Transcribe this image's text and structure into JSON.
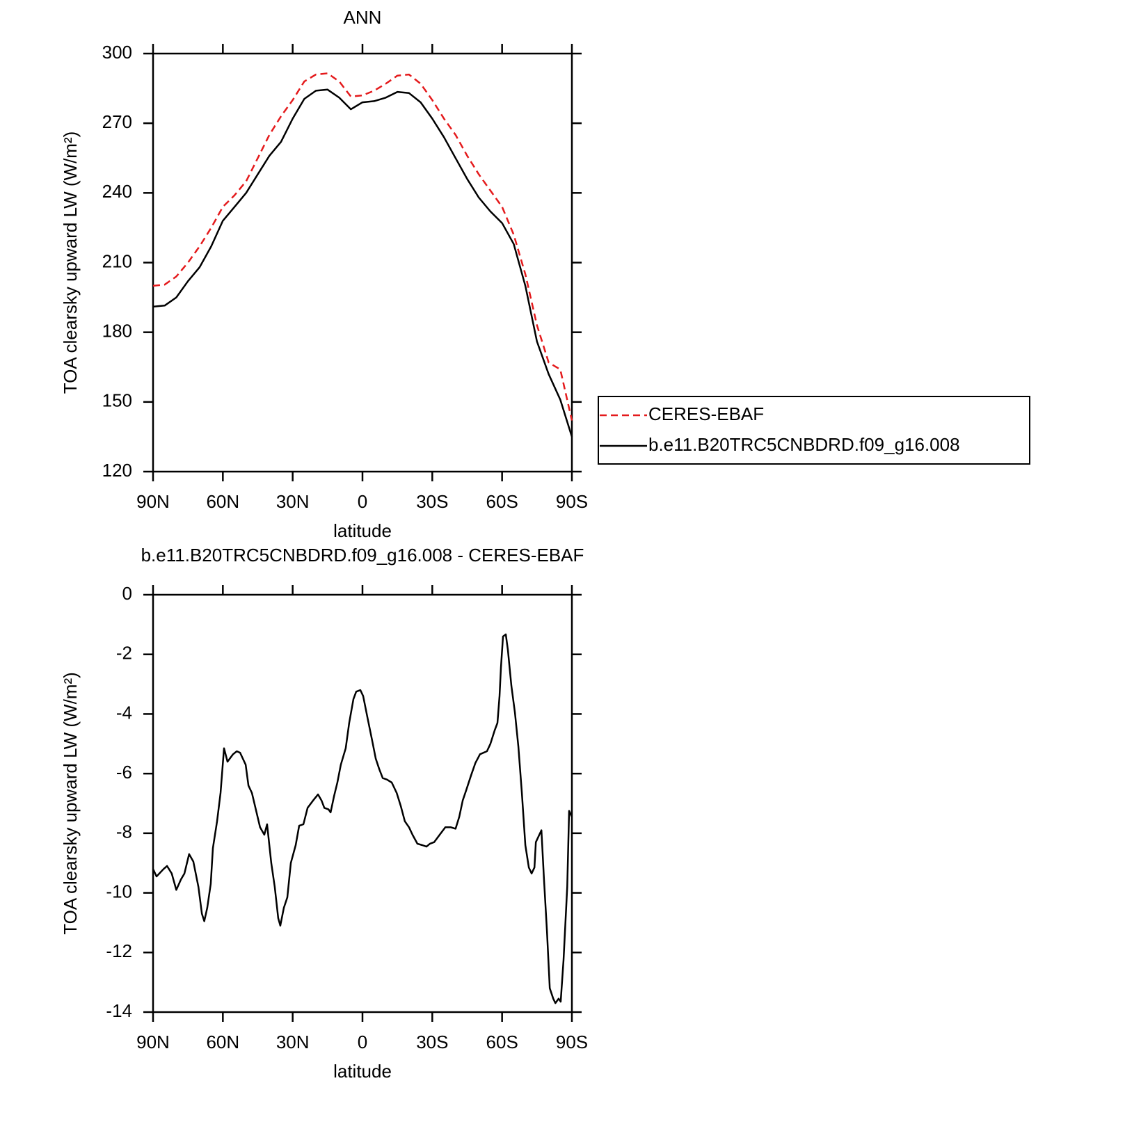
{
  "chart_data": [
    {
      "type": "line",
      "title": "ANN",
      "xlabel": "latitude",
      "ylabel": "TOA clearsky upward LW (W/m²)",
      "xlim": [
        90,
        -90
      ],
      "ylim": [
        120,
        300
      ],
      "xticks": [
        {
          "value": 90,
          "label": "90N"
        },
        {
          "value": 60,
          "label": "60N"
        },
        {
          "value": 30,
          "label": "30N"
        },
        0,
        {
          "value": -30,
          "label": "30S"
        },
        {
          "value": -60,
          "label": "60S"
        },
        {
          "value": -90,
          "label": "90S"
        }
      ],
      "yticks": [
        120,
        150,
        180,
        210,
        240,
        270,
        300
      ],
      "legend": "right",
      "x": [
        90,
        85,
        80,
        75,
        70,
        65,
        60,
        55,
        50,
        45,
        40,
        35,
        30,
        25,
        20,
        15,
        10,
        5,
        0,
        -5,
        -10,
        -15,
        -20,
        -25,
        -30,
        -35,
        -40,
        -45,
        -50,
        -55,
        -60,
        -65,
        -70,
        -75,
        -80,
        -85,
        -90
      ],
      "series": [
        {
          "name": "CERES-EBAF",
          "color": "#e41a1c",
          "line_style": "dashed",
          "values": [
            200,
            200.5,
            204,
            210,
            217,
            225,
            234,
            239,
            245,
            255,
            265,
            273,
            280,
            288,
            291,
            291.5,
            288,
            281.5,
            282,
            284,
            287,
            290.5,
            291,
            287,
            280,
            272,
            265,
            256,
            248,
            241,
            234,
            222,
            205,
            183,
            167,
            164,
            142
          ]
        },
        {
          "name": "b.e11.B20TRC5CNBDRD.f09_g16.008",
          "color": "#000000",
          "line_style": "solid",
          "values": [
            191,
            191.5,
            195,
            202,
            208,
            217,
            228,
            234,
            240,
            248,
            256,
            262,
            272,
            280.5,
            284,
            284.5,
            281,
            276,
            279,
            279.5,
            281,
            283.5,
            283,
            279,
            272,
            264,
            255,
            246,
            238,
            232,
            227,
            218,
            200,
            176,
            162,
            151,
            135
          ]
        }
      ]
    },
    {
      "type": "line",
      "title": "b.e11.B20TRC5CNBDRD.f09_g16.008 - CERES-EBAF",
      "xlabel": "latitude",
      "ylabel": "TOA clearsky upward LW (W/m²)",
      "xlim": [
        90,
        -90
      ],
      "ylim": [
        -14,
        0
      ],
      "xticks": [
        {
          "value": 90,
          "label": "90N"
        },
        {
          "value": 60,
          "label": "60N"
        },
        {
          "value": 30,
          "label": "30N"
        },
        0,
        {
          "value": -30,
          "label": "30S"
        },
        {
          "value": -60,
          "label": "60S"
        },
        {
          "value": -90,
          "label": "90S"
        }
      ],
      "yticks": [
        -14,
        -12,
        -10,
        -8,
        -6,
        -4,
        -2,
        0
      ],
      "x": [
        90,
        88.5,
        85.5,
        84,
        82,
        80,
        78,
        76.5,
        74.5,
        72.7,
        70.5,
        69,
        68,
        66.7,
        65.2,
        64.3,
        62.5,
        61,
        59.5,
        58,
        55.6,
        54,
        52.6,
        50.2,
        49,
        47.5,
        45.7,
        44,
        42.2,
        41,
        39.2,
        37.7,
        36.2,
        35.3,
        33.8,
        32.3,
        30.8,
        28.7,
        27.2,
        25.4,
        23.6,
        21.2,
        19.1,
        17.6,
        16.4,
        14.6,
        13.7,
        12.2,
        10.8,
        9.3,
        7.2,
        5.7,
        3.9,
        2.7,
        0.9,
        -0.3,
        -2.1,
        -4.2,
        -5.7,
        -7.2,
        -8.7,
        -10.5,
        -12.6,
        -14.7,
        -16.5,
        -18.2,
        -20,
        -21.5,
        -23.6,
        -25.7,
        -27.5,
        -29,
        -30.8,
        -33.2,
        -35.6,
        -38,
        -40,
        -41.6,
        -43.1,
        -44.6,
        -46.7,
        -48.5,
        -50.5,
        -53.5,
        -55,
        -56.8,
        -58,
        -58.9,
        -59.5,
        -60.4,
        -61.6,
        -62.5,
        -64,
        -65.5,
        -67,
        -68.5,
        -70,
        -71.5,
        -72.7,
        -73.9,
        -74.5,
        -76,
        -76.9,
        -78,
        -79.3,
        -80.5,
        -82,
        -82.9,
        -84.3,
        -85.2,
        -86.4,
        -88,
        -88.8,
        -90
      ],
      "series": [
        {
          "color": "#000000",
          "line_style": "solid",
          "values": [
            -9.2,
            -9.45,
            -9.2,
            -9.1,
            -9.35,
            -9.9,
            -9.55,
            -9.35,
            -8.7,
            -8.95,
            -9.8,
            -10.7,
            -10.95,
            -10.5,
            -9.7,
            -8.5,
            -7.6,
            -6.65,
            -5.15,
            -5.6,
            -5.35,
            -5.25,
            -5.3,
            -5.7,
            -6.4,
            -6.65,
            -7.25,
            -7.8,
            -8.05,
            -7.7,
            -9.0,
            -9.8,
            -10.85,
            -11.1,
            -10.5,
            -10.15,
            -9.0,
            -8.4,
            -7.75,
            -7.7,
            -7.15,
            -6.9,
            -6.7,
            -6.9,
            -7.15,
            -7.2,
            -7.3,
            -6.75,
            -6.3,
            -5.7,
            -5.15,
            -4.3,
            -3.5,
            -3.25,
            -3.2,
            -3.4,
            -4.1,
            -4.9,
            -5.5,
            -5.85,
            -6.15,
            -6.2,
            -6.3,
            -6.65,
            -7.1,
            -7.6,
            -7.8,
            -8.05,
            -8.35,
            -8.4,
            -8.45,
            -8.35,
            -8.3,
            -8.05,
            -7.8,
            -7.8,
            -7.85,
            -7.45,
            -6.9,
            -6.55,
            -6.05,
            -5.65,
            -5.35,
            -5.25,
            -5.0,
            -4.55,
            -4.3,
            -3.4,
            -2.45,
            -1.4,
            -1.33,
            -1.85,
            -3.05,
            -3.95,
            -5.1,
            -6.65,
            -8.4,
            -9.15,
            -9.35,
            -9.15,
            -8.3,
            -8.05,
            -7.9,
            -9.55,
            -11.3,
            -13.2,
            -13.55,
            -13.7,
            -13.55,
            -13.65,
            -12.25,
            -9.8,
            -7.25,
            -7.45
          ]
        }
      ]
    }
  ]
}
